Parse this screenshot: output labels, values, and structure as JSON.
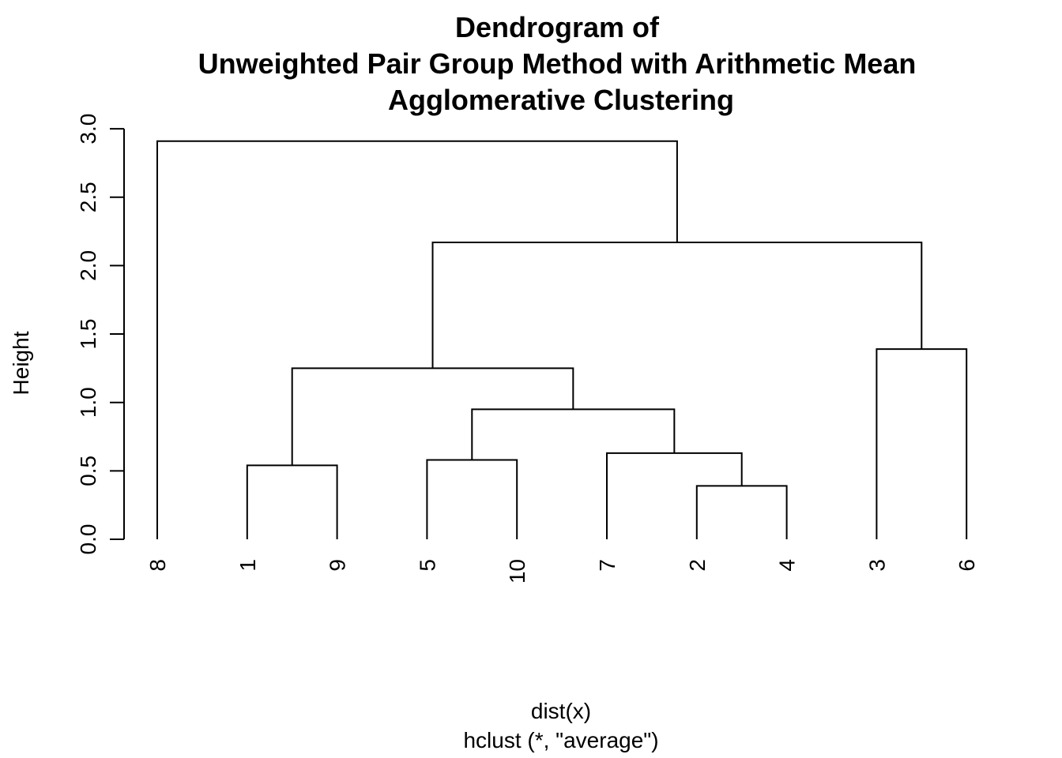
{
  "chart_data": {
    "type": "dendrogram",
    "title_lines": [
      "Dendrogram of",
      "Unweighted Pair Group Method with Arithmetic Mean",
      "Agglomerative Clustering"
    ],
    "ylabel": "Height",
    "xlabel": "dist(x)",
    "sub": "hclust (*, \"average\")",
    "ylim": [
      0,
      3.0
    ],
    "yticks": [
      "0.0",
      "0.5",
      "1.0",
      "1.5",
      "2.0",
      "2.5",
      "3.0"
    ],
    "leaf_order": [
      "8",
      "1",
      "9",
      "5",
      "10",
      "7",
      "2",
      "4",
      "3",
      "6"
    ],
    "merges": [
      {
        "left": "2",
        "right": "4",
        "height": 0.39
      },
      {
        "left": "1",
        "right": "9",
        "height": 0.54
      },
      {
        "left": "5",
        "right": "10",
        "height": 0.58
      },
      {
        "left": "7",
        "right": "(2,4)",
        "height": 0.63
      },
      {
        "left": "(5,10)",
        "right": "(7,(2,4))",
        "height": 0.95
      },
      {
        "left": "(1,9)",
        "right": "((5,10),(7,(2,4)))",
        "height": 1.25
      },
      {
        "left": "3",
        "right": "6",
        "height": 1.39
      },
      {
        "left": "((1,9),((5,10),(7,(2,4))))",
        "right": "(3,6)",
        "height": 2.17
      },
      {
        "left": "8",
        "right": "rest",
        "height": 2.91
      }
    ]
  }
}
